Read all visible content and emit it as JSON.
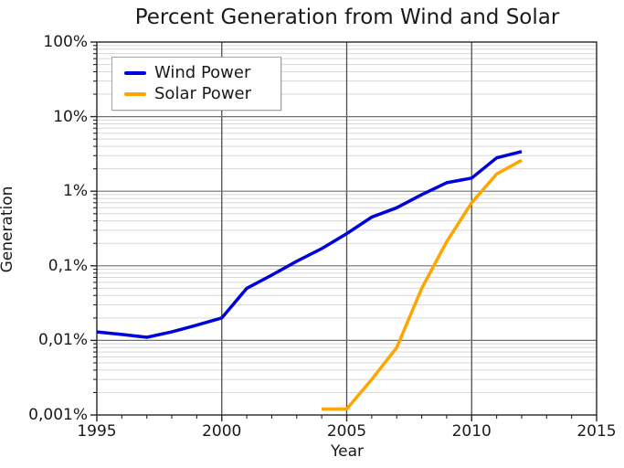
{
  "chart_data": {
    "type": "line",
    "title": "Percent Generation from Wind and Solar",
    "xlabel": "Year",
    "ylabel": "Generation",
    "x_scale": "linear",
    "y_scale": "log",
    "xlim": [
      1995,
      2015
    ],
    "ylim_percent": [
      0.001,
      100
    ],
    "x_major_ticks": [
      1995,
      2000,
      2005,
      2010,
      2015
    ],
    "x_tick_labels": [
      "1995",
      "2000",
      "2005",
      "2010",
      "2015"
    ],
    "y_major_ticks_percent": [
      100,
      10,
      1,
      0.1,
      0.01,
      0.001
    ],
    "y_tick_labels": [
      "100%",
      "10%",
      "1%",
      "0,1%",
      "0,01%",
      "0,001%"
    ],
    "grid": "major and minor, both axes",
    "legend_position": "upper-left",
    "series": [
      {
        "name": "Wind Power",
        "color": "#0000dd",
        "x": [
          1995,
          1996,
          1997,
          1998,
          1999,
          2000,
          2001,
          2002,
          2003,
          2004,
          2005,
          2006,
          2007,
          2008,
          2009,
          2010,
          2011,
          2012
        ],
        "y": [
          0.013,
          0.012,
          0.011,
          0.013,
          0.016,
          0.02,
          0.05,
          0.075,
          0.115,
          0.17,
          0.27,
          0.45,
          0.6,
          0.9,
          1.3,
          1.5,
          2.8,
          3.4
        ]
      },
      {
        "name": "Solar Power",
        "color": "#ffa500",
        "x": [
          2004,
          2005,
          2006,
          2007,
          2008,
          2009,
          2010,
          2011,
          2012
        ],
        "y": [
          0.0012,
          0.0012,
          0.003,
          0.008,
          0.05,
          0.21,
          0.7,
          1.7,
          2.6
        ]
      }
    ],
    "colors": {
      "frame": "#262626",
      "major_grid_horizontal": "#707070",
      "major_grid_vertical": "#4d4d4d",
      "minor_grid": "#d8d8d8",
      "text": "#1a1a1a"
    }
  }
}
